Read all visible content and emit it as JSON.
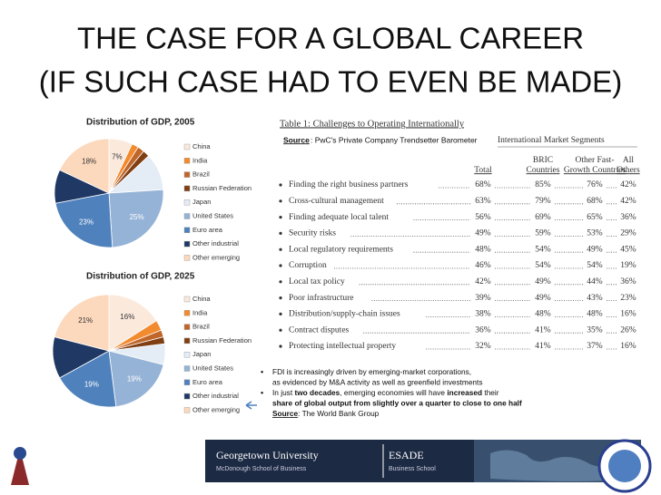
{
  "title": [
    "THE CASE FOR A GLOBAL CAREER",
    "(IF SUCH CASE HAD TO EVEN BE MADE)"
  ],
  "chart_data": [
    {
      "type": "pie",
      "title": "Distribution of GDP, 2005",
      "categories": [
        "China",
        "India",
        "Brazil",
        "Russian Federation",
        "Japan",
        "United States",
        "Euro area",
        "Other industrial",
        "Other emerging"
      ],
      "values": [
        7,
        2,
        2,
        2,
        11,
        25,
        23,
        10,
        18
      ],
      "value_labels": [
        "7%",
        null,
        null,
        null,
        null,
        "25%",
        "23%",
        null,
        "18%"
      ],
      "colors": [
        "#fbe9dc",
        "#f28a2e",
        "#c0662a",
        "#7f3f12",
        "#e4ecf6",
        "#95b3d7",
        "#4f81bd",
        "#1f3864",
        "#fcd8bc"
      ]
    },
    {
      "type": "pie",
      "title": "Distribution of GDP, 2025",
      "categories": [
        "China",
        "India",
        "Brazil",
        "Russian Federation",
        "Japan",
        "United States",
        "Euro area",
        "Other industrial",
        "Other emerging"
      ],
      "values": [
        16,
        3,
        2,
        2,
        6,
        19,
        19,
        12,
        21
      ],
      "value_labels": [
        "16%",
        null,
        null,
        null,
        null,
        "19%",
        "19%",
        null,
        "21%"
      ],
      "colors": [
        "#fbe9dc",
        "#f28a2e",
        "#c0662a",
        "#7f3f12",
        "#e4ecf6",
        "#95b3d7",
        "#4f81bd",
        "#1f3864",
        "#fcd8bc"
      ]
    }
  ],
  "table": {
    "title": "Table 1: Challenges to Operating Internationally",
    "source_label": "Source",
    "source_text": ": PwC's Private Company Trendsetter Barometer",
    "group_header": "International Market Segments",
    "columns": [
      [
        "Total"
      ],
      [
        "BRIC",
        "Countries"
      ],
      [
        "Other Fast-",
        "Growth Countries"
      ],
      [
        "All",
        "Others"
      ]
    ],
    "rows": [
      [
        "Finding the right business partners",
        "68%",
        "85%",
        "76%",
        "42%"
      ],
      [
        "Cross-cultural management",
        "63%",
        "79%",
        "68%",
        "42%"
      ],
      [
        "Finding adequate local talent",
        "56%",
        "69%",
        "65%",
        "36%"
      ],
      [
        "Security risks",
        "49%",
        "59%",
        "53%",
        "29%"
      ],
      [
        "Local regulatory requirements",
        "48%",
        "54%",
        "49%",
        "45%"
      ],
      [
        "Corruption",
        "46%",
        "54%",
        "54%",
        "19%"
      ],
      [
        "Local tax policy",
        "42%",
        "49%",
        "44%",
        "36%"
      ],
      [
        "Poor infrastructure",
        "39%",
        "49%",
        "43%",
        "23%"
      ],
      [
        "Distribution/supply-chain issues",
        "38%",
        "48%",
        "48%",
        "16%"
      ],
      [
        "Contract disputes",
        "36%",
        "41%",
        "35%",
        "26%"
      ],
      [
        "Protecting intellectual property",
        "32%",
        "41%",
        "37%",
        "16%"
      ]
    ]
  },
  "bullets": [
    [
      {
        "text": "FDI is increasingly driven by emerging-market corporations,",
        "bold": false
      }
    ],
    [
      {
        "text": "as evidenced by M&A activity as well as greenfield investments",
        "bold": false
      }
    ],
    [
      {
        "text": "In just ",
        "bold": false
      },
      {
        "text": "two decades",
        "bold": true
      },
      {
        "text": ", emerging economies will have ",
        "bold": false
      },
      {
        "text": "increased",
        "bold": true
      },
      {
        "text": " their",
        "bold": false
      }
    ],
    [
      {
        "text": "share of global output from slightly over a quarter to close to one half",
        "bold": true
      }
    ]
  ],
  "bullet_source": {
    "label": "Source",
    "text": ": The World Bank Group"
  },
  "footer": {
    "university": "Georgetown University",
    "school": "McDonough School of Business",
    "esade": "ESADE",
    "esade_sub": "Business School"
  }
}
